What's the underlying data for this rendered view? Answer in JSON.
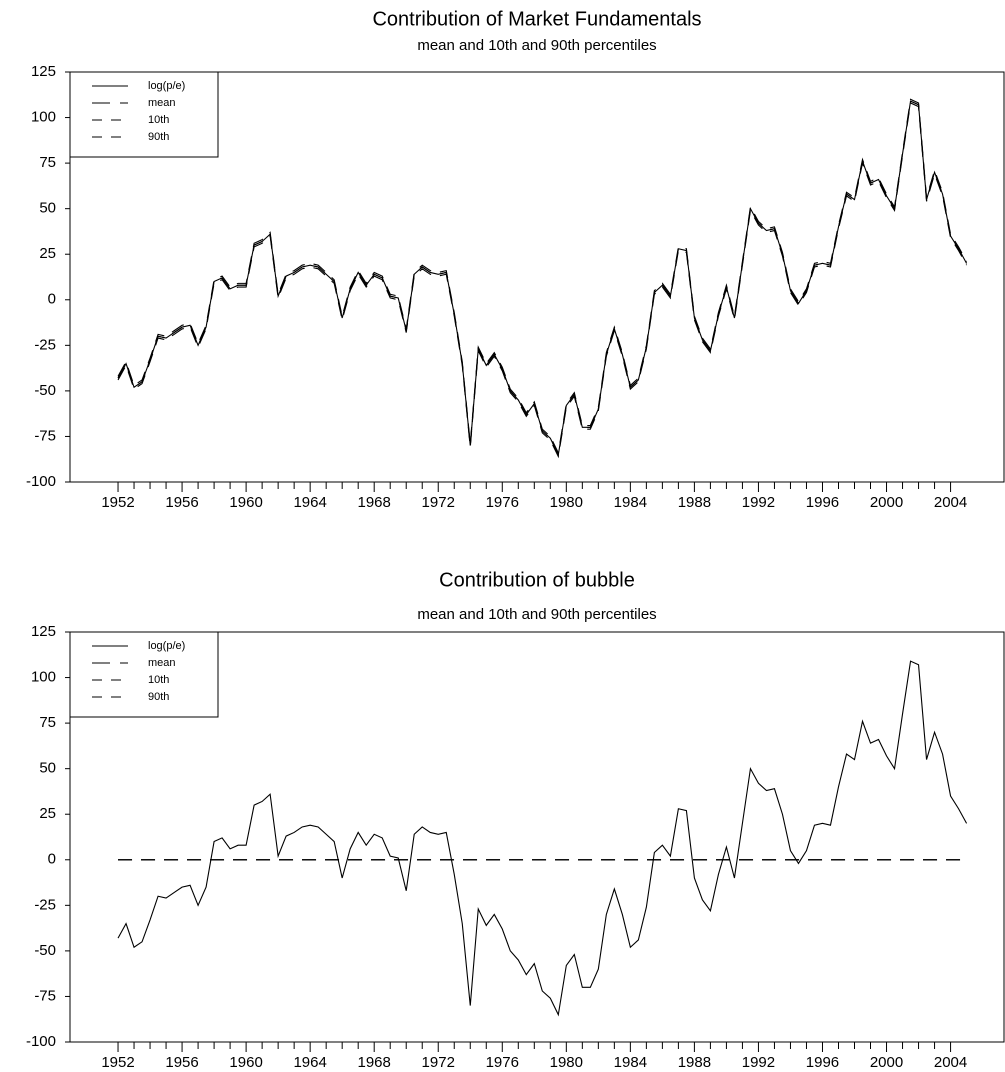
{
  "chart_data": [
    {
      "type": "line",
      "title": "Contribution of Market Fundamentals",
      "subtitle": "mean and 10th and 90th percentiles",
      "x": [
        1952,
        1952.5,
        1953,
        1953.5,
        1954,
        1954.5,
        1955,
        1955.5,
        1956,
        1956.5,
        1957,
        1957.5,
        1958,
        1958.5,
        1959,
        1959.5,
        1960,
        1960.5,
        1961,
        1961.5,
        1962,
        1962.5,
        1963,
        1963.5,
        1964,
        1964.5,
        1965,
        1965.5,
        1966,
        1966.5,
        1967,
        1967.5,
        1968,
        1968.5,
        1969,
        1969.5,
        1970,
        1970.5,
        1971,
        1971.5,
        1972,
        1972.5,
        1973,
        1973.5,
        1974,
        1974.5,
        1975,
        1975.5,
        1976,
        1976.5,
        1977,
        1977.5,
        1978,
        1978.5,
        1979,
        1979.5,
        1980,
        1980.5,
        1981,
        1981.5,
        1982,
        1982.5,
        1983,
        1983.5,
        1984,
        1984.5,
        1985,
        1985.5,
        1986,
        1986.5,
        1987,
        1987.5,
        1988,
        1988.5,
        1989,
        1989.5,
        1990,
        1990.5,
        1991,
        1991.5,
        1992,
        1992.5,
        1993,
        1993.5,
        1994,
        1994.5,
        1995,
        1995.5,
        1996,
        1996.5,
        1997,
        1997.5,
        1998,
        1998.5,
        1999,
        1999.5,
        2000,
        2000.5,
        2001,
        2001.5,
        2002,
        2002.5,
        2003,
        2003.5,
        2004,
        2004.5,
        2005
      ],
      "series": [
        {
          "name": "log(p/e)",
          "color": "#000000",
          "linestyle": "solid",
          "values": [
            -43,
            -35,
            -48,
            -45,
            -33,
            -20,
            -21,
            -18,
            -15,
            -14,
            -25,
            -15,
            10,
            12,
            6,
            8,
            8,
            30,
            32,
            36,
            2,
            13,
            15,
            18,
            19,
            18,
            14,
            10,
            -10,
            6,
            15,
            8,
            14,
            12,
            2,
            1,
            -17,
            14,
            18,
            15,
            14,
            15,
            -8,
            -35,
            -80,
            -27,
            -36,
            -30,
            -38,
            -50,
            -55,
            -63,
            -57,
            -72,
            -76,
            -85,
            -58,
            -52,
            -70,
            -70,
            -60,
            -30,
            -16,
            -30,
            -48,
            -44,
            -26,
            4,
            8,
            2,
            28,
            27,
            -10,
            -22,
            -28,
            -8,
            7,
            -10,
            20,
            50,
            42,
            38,
            39,
            25,
            5,
            -2,
            5,
            19,
            20,
            19,
            40,
            58,
            55,
            76,
            64,
            66,
            57,
            50,
            80,
            109,
            107,
            55,
            70,
            58,
            35,
            28,
            20
          ]
        },
        {
          "name": "mean",
          "color": "#000000",
          "linestyle": "dashed",
          "values": [
            -43,
            -35,
            -48,
            -45,
            -33,
            -20,
            -21,
            -18,
            -15,
            -14,
            -25,
            -15,
            10,
            12,
            6,
            8,
            8,
            30,
            32,
            36,
            2,
            13,
            15,
            18,
            19,
            18,
            14,
            10,
            -10,
            6,
            15,
            8,
            14,
            12,
            2,
            1,
            -17,
            14,
            18,
            15,
            14,
            15,
            -8,
            -35,
            -80,
            -27,
            -36,
            -30,
            -38,
            -50,
            -55,
            -63,
            -57,
            -72,
            -76,
            -85,
            -58,
            -52,
            -70,
            -70,
            -60,
            -30,
            -16,
            -30,
            -48,
            -44,
            -26,
            4,
            8,
            2,
            28,
            27,
            -10,
            -22,
            -28,
            -8,
            7,
            -10,
            20,
            50,
            42,
            38,
            39,
            25,
            5,
            -2,
            5,
            19,
            20,
            19,
            40,
            58,
            55,
            76,
            64,
            66,
            57,
            50,
            80,
            109,
            107,
            55,
            70,
            58,
            35,
            28,
            20
          ]
        },
        {
          "name": "10th",
          "color": "#000000",
          "linestyle": "dashed",
          "values": [
            -44,
            -36,
            -49,
            -46,
            -34,
            -21,
            -22,
            -19,
            -16,
            -15,
            -26,
            -16,
            9,
            11,
            5,
            7,
            7,
            29,
            31,
            35,
            1,
            12,
            14,
            17,
            18,
            17,
            13,
            9,
            -11,
            5,
            14,
            7,
            13,
            11,
            1,
            0,
            -18,
            13,
            17,
            14,
            13,
            14,
            -9,
            -36,
            -81,
            -28,
            -37,
            -31,
            -39,
            -51,
            -56,
            -64,
            -58,
            -73,
            -77,
            -86,
            -59,
            -53,
            -71,
            -71,
            -61,
            -31,
            -17,
            -31,
            -49,
            -45,
            -27,
            3,
            7,
            1,
            27,
            26,
            -11,
            -23,
            -29,
            -9,
            6,
            -11,
            19,
            49,
            41,
            37,
            38,
            24,
            4,
            -3,
            4,
            18,
            19,
            18,
            39,
            57,
            54,
            75,
            63,
            65,
            56,
            49,
            79,
            108,
            106,
            54,
            69,
            57,
            34,
            27,
            19
          ]
        },
        {
          "name": "90th",
          "color": "#000000",
          "linestyle": "dashed",
          "values": [
            -42,
            -34,
            -47,
            -44,
            -32,
            -19,
            -20,
            -17,
            -14,
            -13,
            -24,
            -14,
            11,
            13,
            7,
            9,
            9,
            31,
            33,
            37,
            3,
            14,
            16,
            19,
            20,
            19,
            15,
            11,
            -9,
            7,
            16,
            9,
            15,
            13,
            3,
            2,
            -16,
            15,
            19,
            16,
            15,
            16,
            -7,
            -34,
            -79,
            -26,
            -35,
            -29,
            -37,
            -49,
            -54,
            -62,
            -56,
            -71,
            -75,
            -84,
            -57,
            -51,
            -69,
            -69,
            -59,
            -29,
            -15,
            -29,
            -47,
            -43,
            -25,
            5,
            9,
            3,
            29,
            28,
            -9,
            -21,
            -27,
            -7,
            8,
            -9,
            21,
            51,
            43,
            39,
            40,
            26,
            6,
            -1,
            6,
            20,
            21,
            20,
            41,
            59,
            56,
            77,
            65,
            67,
            58,
            51,
            81,
            110,
            108,
            56,
            71,
            59,
            36,
            29,
            21
          ]
        }
      ],
      "xlim": [
        1949,
        2007.4
      ],
      "xticks": [
        1952,
        1956,
        1960,
        1964,
        1968,
        1972,
        1976,
        1980,
        1984,
        1988,
        1992,
        1996,
        2000,
        2004
      ],
      "ylim": [
        -100,
        125
      ],
      "yticks": [
        -100,
        -75,
        -50,
        -25,
        0,
        25,
        50,
        75,
        100,
        125
      ],
      "grid": false,
      "legend": "upper left"
    },
    {
      "type": "line",
      "title": "Contribution of bubble",
      "subtitle": "mean and 10th and 90th percentiles",
      "x": [
        1952,
        1952.5,
        1953,
        1953.5,
        1954,
        1954.5,
        1955,
        1955.5,
        1956,
        1956.5,
        1957,
        1957.5,
        1958,
        1958.5,
        1959,
        1959.5,
        1960,
        1960.5,
        1961,
        1961.5,
        1962,
        1962.5,
        1963,
        1963.5,
        1964,
        1964.5,
        1965,
        1965.5,
        1966,
        1966.5,
        1967,
        1967.5,
        1968,
        1968.5,
        1969,
        1969.5,
        1970,
        1970.5,
        1971,
        1971.5,
        1972,
        1972.5,
        1973,
        1973.5,
        1974,
        1974.5,
        1975,
        1975.5,
        1976,
        1976.5,
        1977,
        1977.5,
        1978,
        1978.5,
        1979,
        1979.5,
        1980,
        1980.5,
        1981,
        1981.5,
        1982,
        1982.5,
        1983,
        1983.5,
        1984,
        1984.5,
        1985,
        1985.5,
        1986,
        1986.5,
        1987,
        1987.5,
        1988,
        1988.5,
        1989,
        1989.5,
        1990,
        1990.5,
        1991,
        1991.5,
        1992,
        1992.5,
        1993,
        1993.5,
        1994,
        1994.5,
        1995,
        1995.5,
        1996,
        1996.5,
        1997,
        1997.5,
        1998,
        1998.5,
        1999,
        1999.5,
        2000,
        2000.5,
        2001,
        2001.5,
        2002,
        2002.5,
        2003,
        2003.5,
        2004,
        2004.5,
        2005
      ],
      "series": [
        {
          "name": "log(p/e)",
          "color": "#000000",
          "linestyle": "solid",
          "values": [
            -43,
            -35,
            -48,
            -45,
            -33,
            -20,
            -21,
            -18,
            -15,
            -14,
            -25,
            -15,
            10,
            12,
            6,
            8,
            8,
            30,
            32,
            36,
            2,
            13,
            15,
            18,
            19,
            18,
            14,
            10,
            -10,
            6,
            15,
            8,
            14,
            12,
            2,
            1,
            -17,
            14,
            18,
            15,
            14,
            15,
            -8,
            -35,
            -80,
            -27,
            -36,
            -30,
            -38,
            -50,
            -55,
            -63,
            -57,
            -72,
            -76,
            -85,
            -58,
            -52,
            -70,
            -70,
            -60,
            -30,
            -16,
            -30,
            -48,
            -44,
            -26,
            4,
            8,
            2,
            28,
            27,
            -10,
            -22,
            -28,
            -8,
            7,
            -10,
            20,
            50,
            42,
            38,
            39,
            25,
            5,
            -2,
            5,
            19,
            20,
            19,
            40,
            58,
            55,
            76,
            64,
            66,
            57,
            50,
            80,
            109,
            107,
            55,
            70,
            58,
            35,
            28,
            20
          ]
        },
        {
          "name": "mean",
          "color": "#000000",
          "linestyle": "dashed",
          "values": [
            0,
            0,
            0,
            0,
            0,
            0,
            0,
            0,
            0,
            0,
            0,
            0,
            0,
            0,
            0,
            0,
            0,
            0,
            0,
            0,
            0,
            0,
            0,
            0,
            0,
            0,
            0,
            0,
            0,
            0,
            0,
            0,
            0,
            0,
            0,
            0,
            0,
            0,
            0,
            0,
            0,
            0,
            0,
            0,
            0,
            0,
            0,
            0,
            0,
            0,
            0,
            0,
            0,
            0,
            0,
            0,
            0,
            0,
            0,
            0,
            0,
            0,
            0,
            0,
            0,
            0,
            0,
            0,
            0,
            0,
            0,
            0,
            0,
            0,
            0,
            0,
            0,
            0,
            0,
            0,
            0,
            0,
            0,
            0,
            0,
            0,
            0,
            0,
            0,
            0,
            0,
            0,
            0,
            0,
            0,
            0,
            0,
            0,
            0,
            0,
            0,
            0,
            0,
            0,
            0,
            0,
            0
          ]
        },
        {
          "name": "10th",
          "color": "#000000",
          "linestyle": "dashed",
          "values": [
            0,
            0,
            0,
            0,
            0,
            0,
            0,
            0,
            0,
            0,
            0,
            0,
            0,
            0,
            0,
            0,
            0,
            0,
            0,
            0,
            0,
            0,
            0,
            0,
            0,
            0,
            0,
            0,
            0,
            0,
            0,
            0,
            0,
            0,
            0,
            0,
            0,
            0,
            0,
            0,
            0,
            0,
            0,
            0,
            0,
            0,
            0,
            0,
            0,
            0,
            0,
            0,
            0,
            0,
            0,
            0,
            0,
            0,
            0,
            0,
            0,
            0,
            0,
            0,
            0,
            0,
            0,
            0,
            0,
            0,
            0,
            0,
            0,
            0,
            0,
            0,
            0,
            0,
            0,
            0,
            0,
            0,
            0,
            0,
            0,
            0,
            0,
            0,
            0,
            0,
            0,
            0,
            0,
            0,
            0,
            0,
            0,
            0,
            0,
            0,
            0,
            0,
            0,
            0,
            0,
            0,
            0
          ]
        },
        {
          "name": "90th",
          "color": "#000000",
          "linestyle": "dashed",
          "values": [
            0,
            0,
            0,
            0,
            0,
            0,
            0,
            0,
            0,
            0,
            0,
            0,
            0,
            0,
            0,
            0,
            0,
            0,
            0,
            0,
            0,
            0,
            0,
            0,
            0,
            0,
            0,
            0,
            0,
            0,
            0,
            0,
            0,
            0,
            0,
            0,
            0,
            0,
            0,
            0,
            0,
            0,
            0,
            0,
            0,
            0,
            0,
            0,
            0,
            0,
            0,
            0,
            0,
            0,
            0,
            0,
            0,
            0,
            0,
            0,
            0,
            0,
            0,
            0,
            0,
            0,
            0,
            0,
            0,
            0,
            0,
            0,
            0,
            0,
            0,
            0,
            0,
            0,
            0,
            0,
            0,
            0,
            0,
            0,
            0,
            0,
            0,
            0,
            0,
            0,
            0,
            0,
            0,
            0,
            0,
            0,
            0,
            0,
            0,
            0,
            0,
            0,
            0,
            0,
            0,
            0,
            0
          ]
        }
      ],
      "xlim": [
        1949,
        2007.4
      ],
      "xticks": [
        1952,
        1956,
        1960,
        1964,
        1968,
        1972,
        1976,
        1980,
        1984,
        1988,
        1992,
        1996,
        2000,
        2004
      ],
      "ylim": [
        -100,
        125
      ],
      "yticks": [
        -100,
        -75,
        -50,
        -25,
        0,
        25,
        50,
        75,
        100,
        125
      ],
      "grid": false,
      "legend": "upper left"
    }
  ]
}
